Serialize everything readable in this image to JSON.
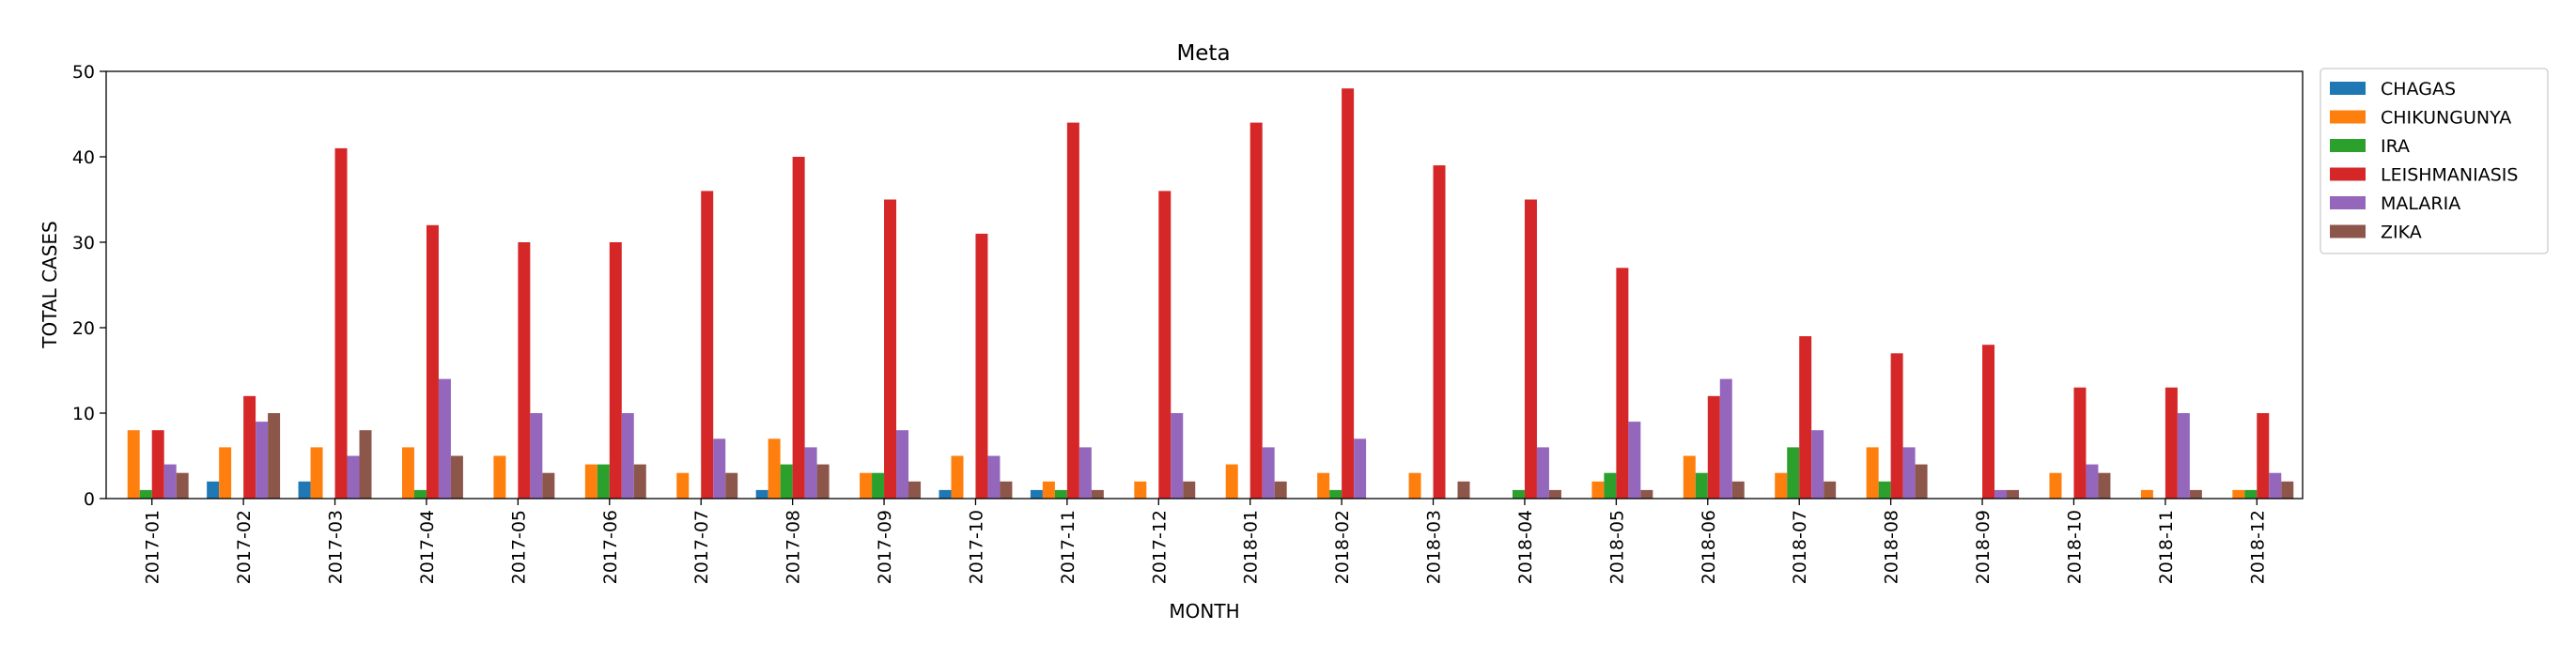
{
  "chart_data": {
    "type": "bar",
    "title": "Meta",
    "xlabel": "MONTH",
    "ylabel": "TOTAL CASES",
    "ylim": [
      0,
      50
    ],
    "yticks": [
      0,
      10,
      20,
      30,
      40,
      50
    ],
    "grid": false,
    "legend_position": "outside-top-right",
    "categories": [
      "2017-01",
      "2017-02",
      "2017-03",
      "2017-04",
      "2017-05",
      "2017-06",
      "2017-07",
      "2017-08",
      "2017-09",
      "2017-10",
      "2017-11",
      "2017-12",
      "2018-01",
      "2018-02",
      "2018-03",
      "2018-04",
      "2018-05",
      "2018-06",
      "2018-07",
      "2018-08",
      "2018-09",
      "2018-10",
      "2018-11",
      "2018-12"
    ],
    "series": [
      {
        "name": "CHAGAS",
        "color": "#1f77b4",
        "values": [
          0,
          2,
          2,
          0,
          0,
          0,
          0,
          1,
          0,
          1,
          1,
          0,
          0,
          0,
          0,
          0,
          0,
          0,
          0,
          0,
          0,
          0,
          0,
          0
        ]
      },
      {
        "name": "CHIKUNGUNYA",
        "color": "#ff7f0e",
        "values": [
          8,
          6,
          6,
          6,
          5,
          4,
          3,
          7,
          3,
          5,
          2,
          2,
          4,
          3,
          3,
          0,
          2,
          5,
          3,
          6,
          0,
          3,
          1,
          1
        ]
      },
      {
        "name": "IRA",
        "color": "#2ca02c",
        "values": [
          1,
          0,
          0,
          1,
          0,
          4,
          0,
          4,
          3,
          0,
          1,
          0,
          0,
          1,
          0,
          1,
          3,
          3,
          6,
          2,
          0,
          0,
          0,
          1
        ]
      },
      {
        "name": "LEISHMANIASIS",
        "color": "#d62728",
        "values": [
          8,
          12,
          41,
          32,
          30,
          30,
          36,
          40,
          35,
          31,
          44,
          36,
          44,
          48,
          39,
          35,
          27,
          12,
          19,
          17,
          18,
          13,
          13,
          10
        ]
      },
      {
        "name": "MALARIA",
        "color": "#9467bd",
        "values": [
          4,
          9,
          5,
          14,
          10,
          10,
          7,
          6,
          8,
          5,
          6,
          10,
          6,
          7,
          0,
          6,
          9,
          14,
          8,
          6,
          1,
          4,
          10,
          3
        ]
      },
      {
        "name": "ZIKA",
        "color": "#8c564b",
        "values": [
          3,
          10,
          8,
          5,
          3,
          4,
          3,
          4,
          2,
          2,
          1,
          2,
          2,
          0,
          2,
          1,
          1,
          2,
          2,
          4,
          1,
          3,
          1,
          2
        ]
      }
    ]
  }
}
